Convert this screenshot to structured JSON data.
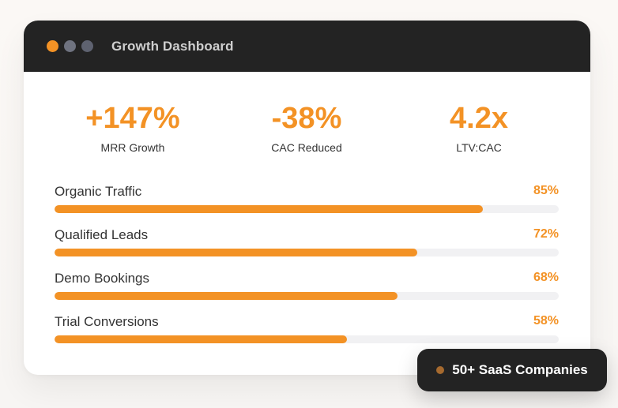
{
  "window": {
    "title": "Growth Dashboard",
    "traffic_lights": [
      {
        "icon": "orange-dot",
        "color": "#f39225"
      },
      {
        "icon": "gray-dot",
        "color": "#6f7380"
      },
      {
        "icon": "gray-dot",
        "color": "#5e6270"
      }
    ]
  },
  "stats": [
    {
      "value": "+147%",
      "label": "MRR Growth"
    },
    {
      "value": "-38%",
      "label": "CAC Reduced"
    },
    {
      "value": "4.2x",
      "label": "LTV:CAC"
    }
  ],
  "metrics": [
    {
      "label": "Organic Traffic",
      "percent_text": "85%",
      "percent": 85
    },
    {
      "label": "Qualified Leads",
      "percent_text": "72%",
      "percent": 72
    },
    {
      "label": "Demo Bookings",
      "percent_text": "68%",
      "percent": 68
    },
    {
      "label": "Trial Conversions",
      "percent_text": "58%",
      "percent": 58
    }
  ],
  "badge": {
    "text": "50+ SaaS Companies",
    "dot_color": "#a66a2f"
  },
  "colors": {
    "accent": "#f39225",
    "titlebar": "#232323",
    "track": "#f1f1f3"
  }
}
